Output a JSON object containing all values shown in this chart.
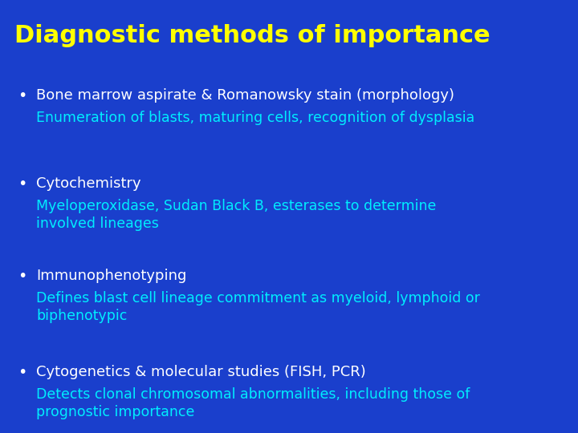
{
  "title": "Diagnostic methods of importance",
  "title_color": "#FFFF00",
  "title_fontsize": 22,
  "background_color": "#1A3FCC",
  "bullet_color": "#FFFFFF",
  "subtext_color": "#00EEFF",
  "bullet_fontsize": 13,
  "subtext_fontsize": 12.5,
  "bullets": [
    {
      "heading": "Bone marrow aspirate & Romanowsky stain (morphology)",
      "subtext": "Enumeration of blasts, maturing cells, recognition of dysplasia"
    },
    {
      "heading": "Cytochemistry",
      "subtext": "Myeloperoxidase, Sudan Black B, esterases to determine\ninvolved lineages"
    },
    {
      "heading": "Immunophenotyping",
      "subtext": "Defines blast cell lineage commitment as myeloid, lymphoid or\nbiphenotypic"
    },
    {
      "heading": "Cytogenetics & molecular studies (FISH, PCR)",
      "subtext": "Detects clonal chromosomal abnormalities, including those of\nprognostic importance"
    }
  ]
}
